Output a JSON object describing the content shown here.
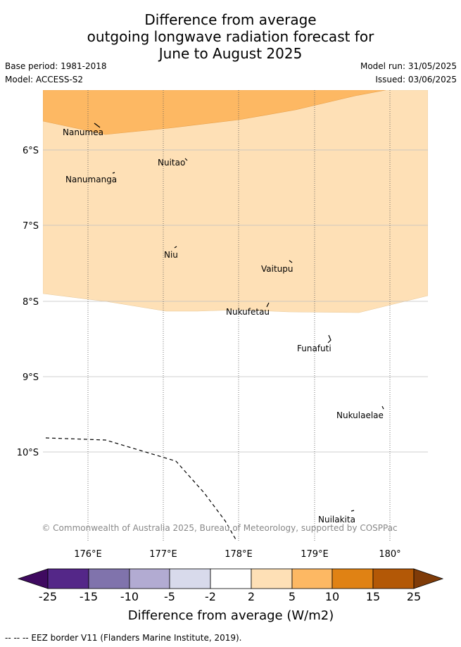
{
  "title": {
    "line1": "Difference from average",
    "line2": "outgoing longwave radiation forecast for",
    "line3": "June to August 2025"
  },
  "meta": {
    "base_period": "Base period: 1981-2018",
    "model": "Model: ACCESS-S2",
    "model_run": "Model run: 31/05/2025",
    "issued": "Issued: 03/06/2025"
  },
  "map": {
    "lat_labels": [
      "6°S",
      "7°S",
      "8°S",
      "9°S",
      "10°S"
    ],
    "lon_labels": [
      "176°E",
      "177°E",
      "178°E",
      "179°E",
      "180°"
    ],
    "islands": {
      "nanumea": "Nanumea",
      "nuitao": "Nuitao",
      "nanumanga": "Nanumanga",
      "niu": "Niu",
      "vaitupu": "Vaitupu",
      "nukufetau": "Nukufetau",
      "funafuti": "Funafuti",
      "nukulaelae": "Nukulaelae",
      "nuilakita": "Nuilakita"
    },
    "copyright": "© Commonwealth of Australia 2025, Bureau of Meteorology, supported by COSPPac",
    "colors": {
      "band_5_10": "#fdb863",
      "band_2_5": "#fee0b6"
    }
  },
  "colorbar": {
    "ticks": [
      "-25",
      "-15",
      "-10",
      "-5",
      "-2",
      "2",
      "5",
      "10",
      "15",
      "25"
    ],
    "colors": [
      "#3f0a60",
      "#542788",
      "#8073ac",
      "#b2abd2",
      "#d8daeb",
      "#ffffff",
      "#fee0b6",
      "#fdb863",
      "#e08214",
      "#b35806",
      "#7f3b08"
    ],
    "label": "Difference from average (W/m2)"
  },
  "footer": "-- -- -- EEZ border V11 (Flanders Marine Institute, 2019)."
}
